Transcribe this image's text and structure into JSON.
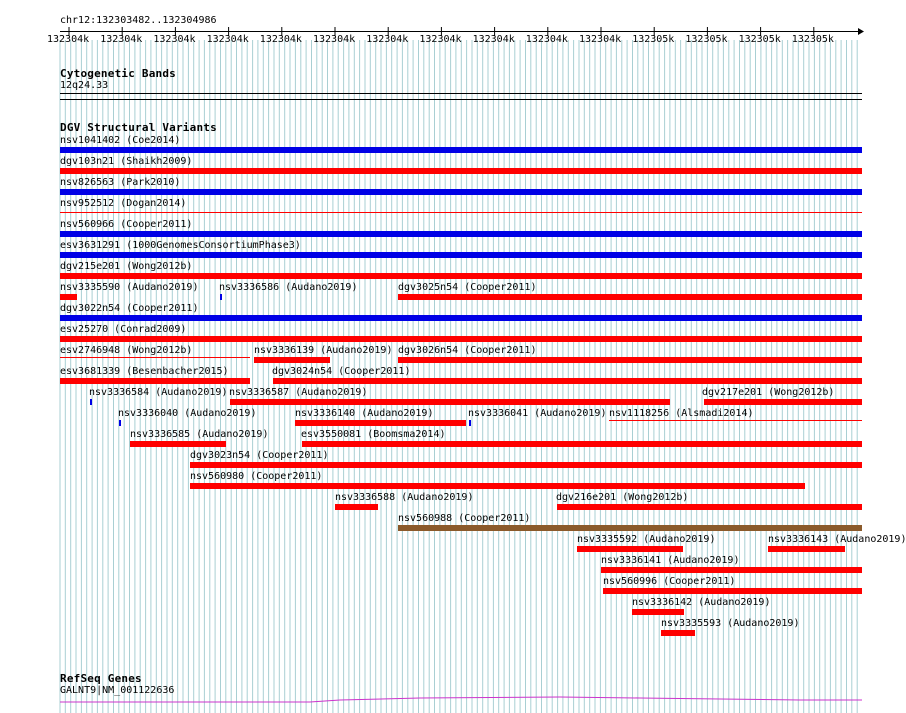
{
  "location": "chr12:132303482..132304986",
  "ruler": {
    "ticks": [
      "132304k",
      "132304k",
      "132304k",
      "132304k",
      "132304k",
      "132304k",
      "132304k",
      "132304k",
      "132304k",
      "132304k",
      "132304k",
      "132305k",
      "132305k",
      "132305k",
      "132305k"
    ]
  },
  "tracks": {
    "cytoband": {
      "title": "Cytogenetic Bands",
      "band": "12q24.33"
    },
    "dgv": {
      "title": "DGV Structural Variants"
    },
    "refseq": {
      "title": "RefSeq Genes",
      "gene": "GALNT9|NM_001122636"
    }
  },
  "colors": {
    "gain": "#0000e6",
    "loss": "#ff0000",
    "gainloss": "#8b5a2b",
    "grid": "#a9cfd3",
    "gene": "#cc33cc"
  },
  "variants": [
    {
      "label": "nsv1041402 (Coe2014)",
      "color": "blue"
    },
    {
      "label": "dgv103n21 (Shaikh2009)",
      "color": "red"
    },
    {
      "label": "nsv826563 (Park2010)",
      "color": "blue"
    },
    {
      "label": "nsv952512 (Dogan2014)",
      "color": "red"
    },
    {
      "label": "nsv560966 (Cooper2011)",
      "color": "blue"
    },
    {
      "label": "esv3631291 (1000GenomesConsortiumPhase3)",
      "color": "blue"
    },
    {
      "label": "dgv215e201 (Wong2012b)",
      "color": "red"
    },
    {
      "label": "nsv3335590 (Audano2019)",
      "color": "red"
    },
    {
      "label": "nsv3336586 (Audano2019)",
      "color": "blue"
    },
    {
      "label": "dgv3025n54 (Cooper2011)",
      "color": "red"
    },
    {
      "label": "dgv3022n54 (Cooper2011)",
      "color": "blue"
    },
    {
      "label": "esv25270 (Conrad2009)",
      "color": "red"
    },
    {
      "label": "esv2746948 (Wong2012b)",
      "color": "red"
    },
    {
      "label": "nsv3336139 (Audano2019)",
      "color": "red"
    },
    {
      "label": "dgv3026n54 (Cooper2011)",
      "color": "red"
    },
    {
      "label": "esv3681339 (Besenbacher2015)",
      "color": "red"
    },
    {
      "label": "dgv3024n54 (Cooper2011)",
      "color": "red"
    },
    {
      "label": "nsv3336584 (Audano2019)",
      "color": "blue"
    },
    {
      "label": "nsv3336587 (Audano2019)",
      "color": "red"
    },
    {
      "label": "dgv217e201 (Wong2012b)",
      "color": "red"
    },
    {
      "label": "nsv3336040 (Audano2019)",
      "color": "blue"
    },
    {
      "label": "nsv3336140 (Audano2019)",
      "color": "red"
    },
    {
      "label": "nsv3336041 (Audano2019)",
      "color": "blue"
    },
    {
      "label": "nsv1118256 (Alsmadi2014)",
      "color": "red"
    },
    {
      "label": "nsv3336585 (Audano2019)",
      "color": "red"
    },
    {
      "label": "esv3550081 (Boomsma2014)",
      "color": "red"
    },
    {
      "label": "dgv3023n54 (Cooper2011)",
      "color": "red"
    },
    {
      "label": "nsv560980 (Cooper2011)",
      "color": "red"
    },
    {
      "label": "nsv3336588 (Audano2019)",
      "color": "red"
    },
    {
      "label": "dgv216e201 (Wong2012b)",
      "color": "red"
    },
    {
      "label": "nsv560988 (Cooper2011)",
      "color": "brown"
    },
    {
      "label": "nsv3335592 (Audano2019)",
      "color": "red"
    },
    {
      "label": "nsv3336143 (Audano2019)",
      "color": "red"
    },
    {
      "label": "nsv3336141 (Audano2019)",
      "color": "red"
    },
    {
      "label": "nsv560996 (Cooper2011)",
      "color": "red"
    },
    {
      "label": "nsv3336142 (Audano2019)",
      "color": "red"
    },
    {
      "label": "nsv3335593 (Audano2019)",
      "color": "red"
    }
  ]
}
